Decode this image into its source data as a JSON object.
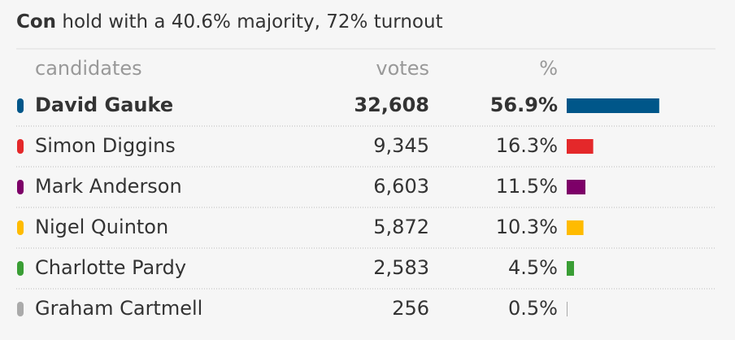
{
  "chart_data": {
    "type": "bar",
    "title_party": "Con",
    "title": "hold with a 40.6% majority, 72% turnout",
    "headers": [
      "candidates",
      "votes",
      "%"
    ],
    "categories": [
      "David Gauke",
      "Simon Diggins",
      "Mark Anderson",
      "Nigel Quinton",
      "Charlotte Pardy",
      "Graham Cartmell"
    ],
    "votes": [
      "32,608",
      "9,345",
      "6,603",
      "5,872",
      "2,583",
      "256"
    ],
    "values": [
      56.9,
      16.3,
      11.5,
      10.3,
      4.5,
      0.5
    ],
    "value_labels": [
      "56.9%",
      "16.3%",
      "11.5%",
      "10.3%",
      "4.5%",
      "0.5%"
    ],
    "colors": [
      "#005689",
      "#e4282a",
      "#7d0068",
      "#ffbb00",
      "#3a9e35",
      "#aaaaaa"
    ]
  }
}
